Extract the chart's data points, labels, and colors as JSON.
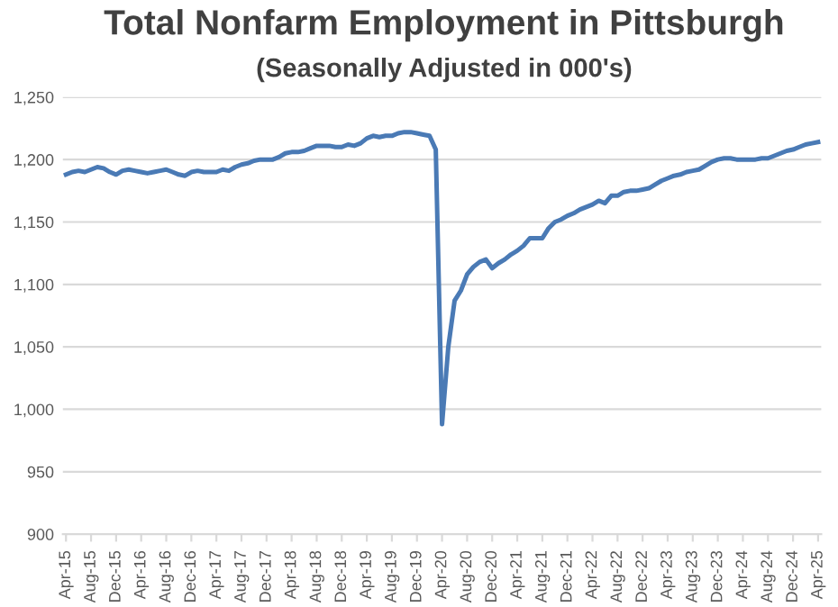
{
  "chart_data": {
    "type": "line",
    "title": "Total Nonfarm Employment in Pittsburgh",
    "subtitle": "(Seasonally Adjusted in 000's)",
    "categories": [
      "Apr-15",
      null,
      null,
      null,
      "Aug-15",
      null,
      null,
      null,
      "Dec-15",
      null,
      null,
      null,
      "Apr-16",
      null,
      null,
      null,
      "Aug-16",
      null,
      null,
      null,
      "Dec-16",
      null,
      null,
      null,
      "Apr-17",
      null,
      null,
      null,
      "Aug-17",
      null,
      null,
      null,
      "Dec-17",
      null,
      null,
      null,
      "Apr-18",
      null,
      null,
      null,
      "Aug-18",
      null,
      null,
      null,
      "Dec-18",
      null,
      null,
      null,
      "Apr-19",
      null,
      null,
      null,
      "Aug-19",
      null,
      null,
      null,
      "Dec-19",
      null,
      null,
      null,
      "Apr-20",
      null,
      null,
      null,
      "Aug-20",
      null,
      null,
      null,
      "Dec-20",
      null,
      null,
      null,
      "Apr-21",
      null,
      null,
      null,
      "Aug-21",
      null,
      null,
      null,
      "Dec-21",
      null,
      null,
      null,
      "Apr-22",
      null,
      null,
      null,
      "Aug-22",
      null,
      null,
      null,
      "Dec-22",
      null,
      null,
      null,
      "Apr-23",
      null,
      null,
      null,
      "Aug-23",
      null,
      null,
      null,
      "Dec-23",
      null,
      null,
      null,
      "Apr-24",
      null,
      null,
      null,
      "Aug-24",
      null,
      null,
      null,
      "Dec-24",
      null,
      null,
      null,
      "Apr-25"
    ],
    "series": [
      {
        "color": "#4a7ab5",
        "values": [
          1188,
          1190,
          1191,
          1190,
          1192,
          1194,
          1193,
          1190,
          1188,
          1191,
          1192,
          1191,
          1190,
          1189,
          1190,
          1191,
          1192,
          1190,
          1188,
          1187,
          1190,
          1191,
          1190,
          1190,
          1190,
          1192,
          1191,
          1194,
          1196,
          1197,
          1199,
          1200,
          1200,
          1200,
          1202,
          1205,
          1206,
          1206,
          1207,
          1209,
          1211,
          1211,
          1211,
          1210,
          1210,
          1212,
          1211,
          1213,
          1217,
          1219,
          1218,
          1219,
          1219,
          1221,
          1222,
          1222,
          1221,
          1220,
          1219,
          1208,
          988,
          1050,
          1087,
          1095,
          1108,
          1114,
          1118,
          1120,
          1113,
          1117,
          1120,
          1124,
          1127,
          1131,
          1137,
          1137,
          1137,
          1145,
          1150,
          1152,
          1155,
          1157,
          1160,
          1162,
          1164,
          1167,
          1165,
          1171,
          1171,
          1174,
          1175,
          1175,
          1176,
          1177,
          1180,
          1183,
          1185,
          1187,
          1188,
          1190,
          1191,
          1192,
          1195,
          1198,
          1200,
          1201,
          1201,
          1200,
          1200,
          1200,
          1200,
          1201,
          1201,
          1203,
          1205,
          1207,
          1208,
          1210,
          1212,
          1213,
          1214
        ]
      }
    ],
    "ylim": [
      900,
      1250
    ],
    "yticks": [
      {
        "value": 900,
        "label": "900"
      },
      {
        "value": 950,
        "label": "950"
      },
      {
        "value": 1000,
        "label": "1,000"
      },
      {
        "value": 1050,
        "label": "1,050"
      },
      {
        "value": 1100,
        "label": "1,100"
      },
      {
        "value": 1150,
        "label": "1,150"
      },
      {
        "value": 1200,
        "label": "1,200"
      },
      {
        "value": 1250,
        "label": "1,250"
      }
    ],
    "grid": "y",
    "marker": "none",
    "line_style": "solid"
  }
}
